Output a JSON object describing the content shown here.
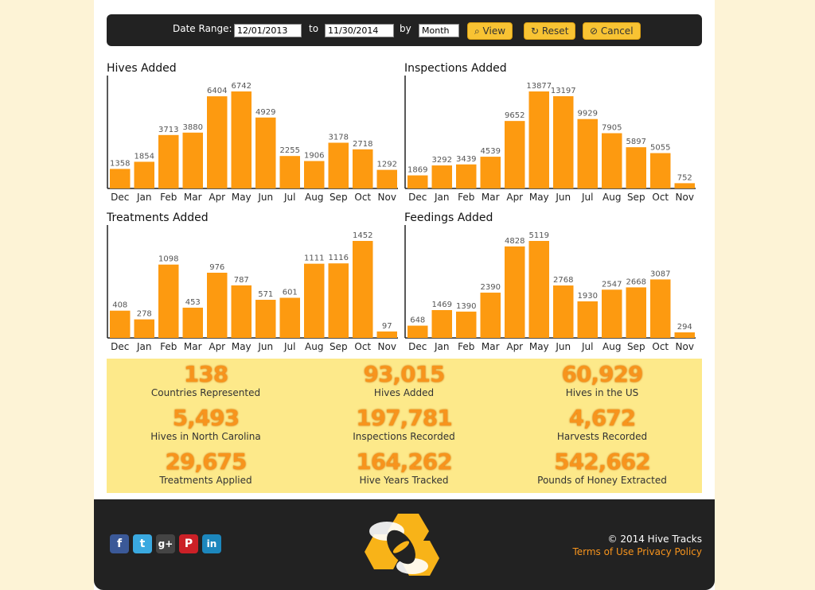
{
  "filter": {
    "label": "Date Range:",
    "from": "12/01/2013",
    "to_label": "to",
    "to": "11/30/2014",
    "by_label": "by",
    "by": "Month",
    "buttons": [
      "View",
      "Reset",
      "Cancel"
    ]
  },
  "chart_data": [
    {
      "type": "bar",
      "title": "Hives Added",
      "categories": [
        "Dec",
        "Jan",
        "Feb",
        "Mar",
        "Apr",
        "May",
        "Jun",
        "Jul",
        "Aug",
        "Sep",
        "Oct",
        "Nov"
      ],
      "values": [
        1358,
        1854,
        3713,
        3880,
        6404,
        6742,
        4929,
        2255,
        1906,
        3178,
        2718,
        1292
      ],
      "color": "#fd9a10"
    },
    {
      "type": "bar",
      "title": "Inspections Added",
      "categories": [
        "Dec",
        "Jan",
        "Feb",
        "Mar",
        "Apr",
        "May",
        "Jun",
        "Jul",
        "Aug",
        "Sep",
        "Oct",
        "Nov"
      ],
      "values": [
        1869,
        3292,
        3439,
        4539,
        9652,
        13877,
        13197,
        9929,
        7905,
        5897,
        5055,
        752
      ],
      "color": "#fd9a10"
    },
    {
      "type": "bar",
      "title": "Treatments Added",
      "categories": [
        "Dec",
        "Jan",
        "Feb",
        "Mar",
        "Apr",
        "May",
        "Jun",
        "Jul",
        "Aug",
        "Sep",
        "Oct",
        "Nov"
      ],
      "values": [
        408,
        278,
        1098,
        453,
        976,
        787,
        571,
        601,
        1111,
        1116,
        1452,
        97
      ],
      "color": "#fd9a10"
    },
    {
      "type": "bar",
      "title": "Feedings Added",
      "categories": [
        "Dec",
        "Jan",
        "Feb",
        "Mar",
        "Apr",
        "May",
        "Jun",
        "Jul",
        "Aug",
        "Sep",
        "Oct",
        "Nov"
      ],
      "values": [
        648,
        1469,
        1390,
        2390,
        4828,
        5119,
        2768,
        1930,
        2547,
        2668,
        3087,
        294
      ],
      "color": "#fd9a10"
    }
  ],
  "stats": [
    {
      "value": "138",
      "label": "Countries Represented"
    },
    {
      "value": "93,015",
      "label": "Hives Added"
    },
    {
      "value": "60,929",
      "label": "Hives in the US"
    },
    {
      "value": "5,493",
      "label": "Hives in North Carolina"
    },
    {
      "value": "197,781",
      "label": "Inspections Recorded"
    },
    {
      "value": "4,672",
      "label": "Harvests Recorded"
    },
    {
      "value": "29,675",
      "label": "Treatments Applied"
    },
    {
      "value": "164,262",
      "label": "Hive Years Tracked"
    },
    {
      "value": "542,662",
      "label": "Pounds of Honey Extracted"
    }
  ],
  "footer": {
    "social": [
      "f",
      "t",
      "g+",
      "P",
      "in"
    ],
    "copyright": "© 2014 Hive Tracks",
    "links": [
      "Terms of Use",
      "Privacy Policy"
    ]
  }
}
